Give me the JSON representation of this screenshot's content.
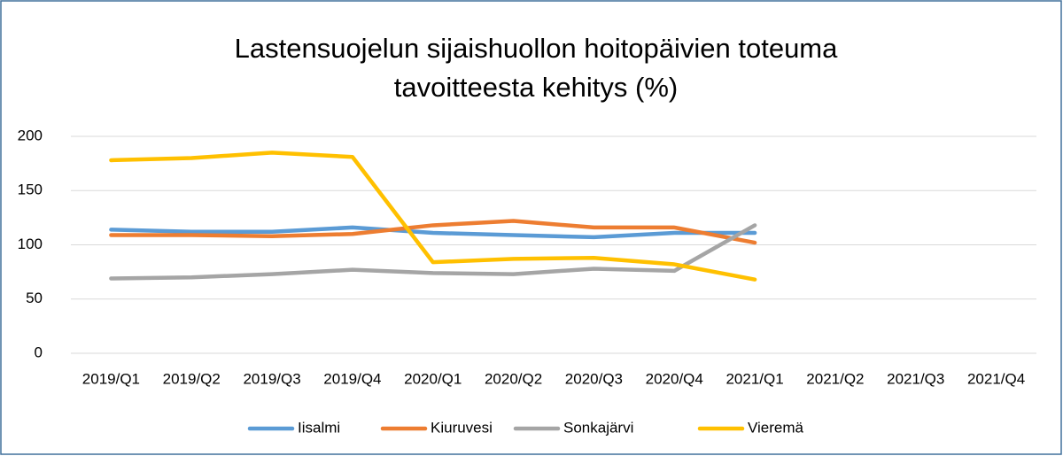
{
  "chart_data": {
    "type": "line",
    "title": [
      "Lastensuojelun sijaishuollon hoitopäivien toteuma",
      "tavoitteesta kehitys (%)"
    ],
    "categories": [
      "2019/Q1",
      "2019/Q2",
      "2019/Q3",
      "2019/Q4",
      "2020/Q1",
      "2020/Q2",
      "2020/Q3",
      "2020/Q4",
      "2021/Q1",
      "2021/Q2",
      "2021/Q3",
      "2021/Q4"
    ],
    "series": [
      {
        "name": "Iisalmi",
        "color": "#5b9bd5",
        "values": [
          114,
          112,
          112,
          116,
          111,
          109,
          107,
          111,
          111,
          null,
          null,
          null
        ]
      },
      {
        "name": "Kiuruvesi",
        "color": "#ed7d31",
        "values": [
          109,
          109,
          108,
          110,
          118,
          122,
          116,
          116,
          102,
          null,
          null,
          null
        ]
      },
      {
        "name": "Sonkajärvi",
        "color": "#a5a5a5",
        "values": [
          69,
          70,
          73,
          77,
          74,
          73,
          78,
          76,
          118,
          null,
          null,
          null
        ]
      },
      {
        "name": "Vieremä",
        "color": "#ffc000",
        "values": [
          178,
          180,
          185,
          181,
          84,
          87,
          88,
          82,
          68,
          null,
          null,
          null
        ]
      }
    ],
    "ylim": [
      0,
      200
    ],
    "yticks": [
      0,
      50,
      100,
      150,
      200
    ],
    "grid": true,
    "legend": "bottom"
  }
}
